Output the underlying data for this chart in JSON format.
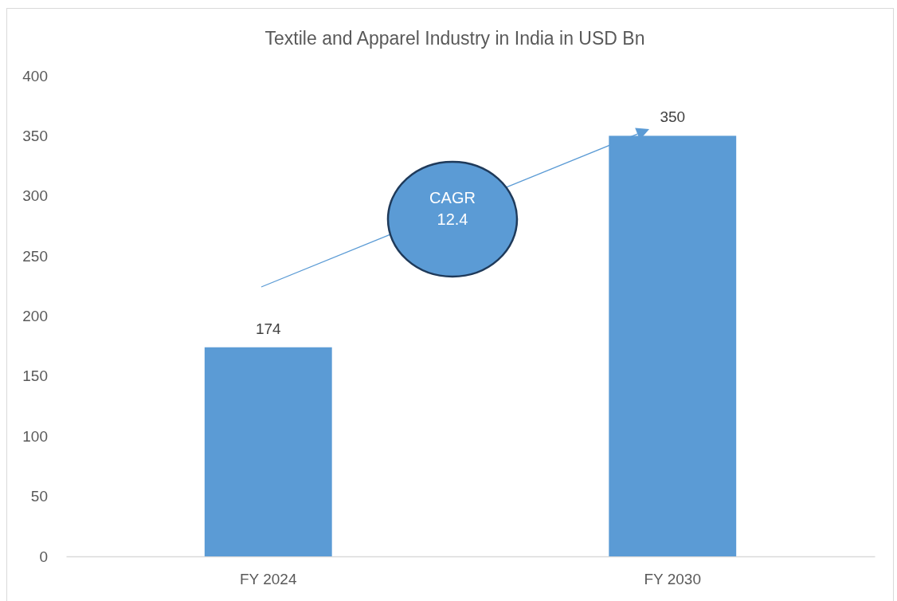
{
  "chart_data": {
    "type": "bar",
    "title": "Textile and Apparel Industry in India in USD Bn",
    "categories": [
      "FY 2024",
      "FY 2030"
    ],
    "values": [
      174,
      350
    ],
    "color": "#5b9bd5",
    "ylim": [
      0,
      400
    ],
    "yticks": [
      0,
      50,
      100,
      150,
      200,
      250,
      300,
      350,
      400
    ],
    "data_labels": true,
    "annotations": [
      "CAGR 12.4"
    ]
  }
}
